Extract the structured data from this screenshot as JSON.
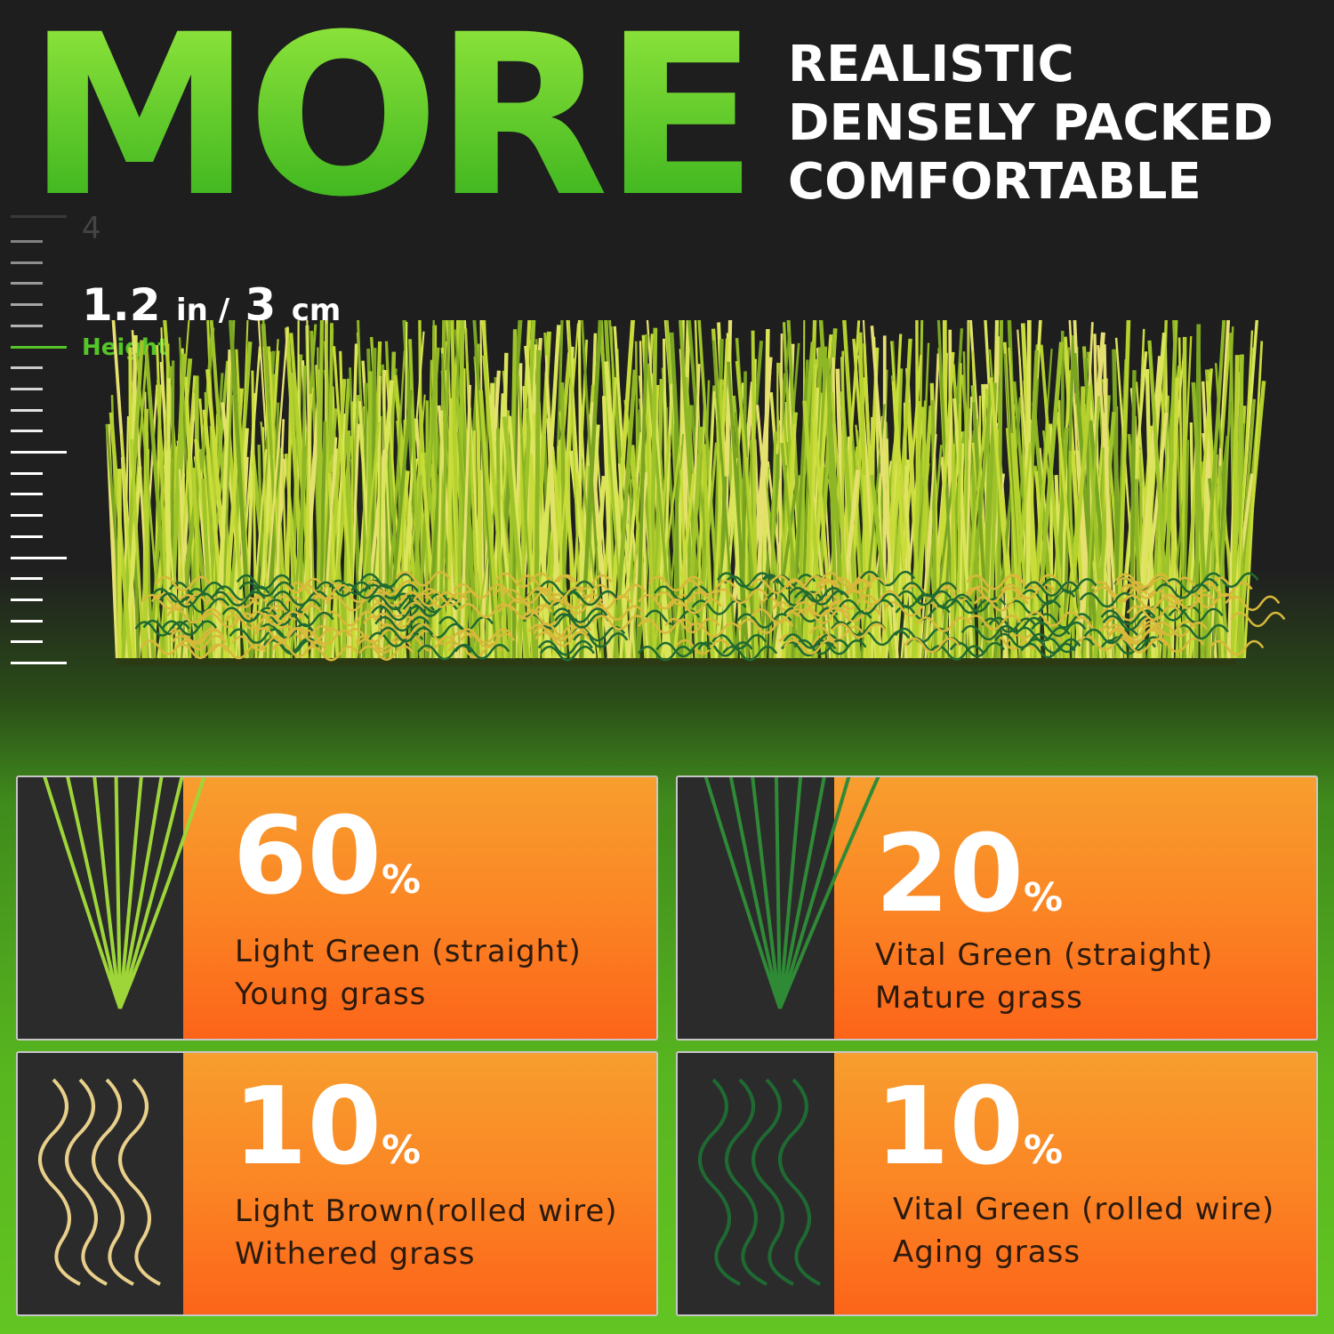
{
  "headline": "MORE",
  "features": [
    "REALISTIC",
    "DENSELY PACKED",
    "COMFORTABLE"
  ],
  "ruler": {
    "mark": "4",
    "height_value": "1.2",
    "height_unit1": "in /",
    "height_value2": "3",
    "height_unit2": "cm",
    "height_label": "Height"
  },
  "cards": [
    {
      "percent": "60",
      "symbol": "%",
      "line1": "Light  Green (straight)",
      "line2": "Young grass",
      "blade_color": "#9ed63a"
    },
    {
      "percent": "20",
      "symbol": "%",
      "line1": "Vital Green (straight)",
      "line2": "Mature grass",
      "blade_color": "#2f8a36"
    },
    {
      "percent": "10",
      "symbol": "%",
      "line1": "Light Brown(rolled wire)",
      "line2": "Withered grass",
      "blade_color": "#e8cf8a"
    },
    {
      "percent": "10",
      "symbol": "%",
      "line1": "Vital Green (rolled wire)",
      "line2": "Aging grass",
      "blade_color": "#1f6a32"
    }
  ],
  "colors": {
    "accent_green": "#6fd22a",
    "orange": "#fb8524",
    "dark": "#1e1e1e"
  }
}
